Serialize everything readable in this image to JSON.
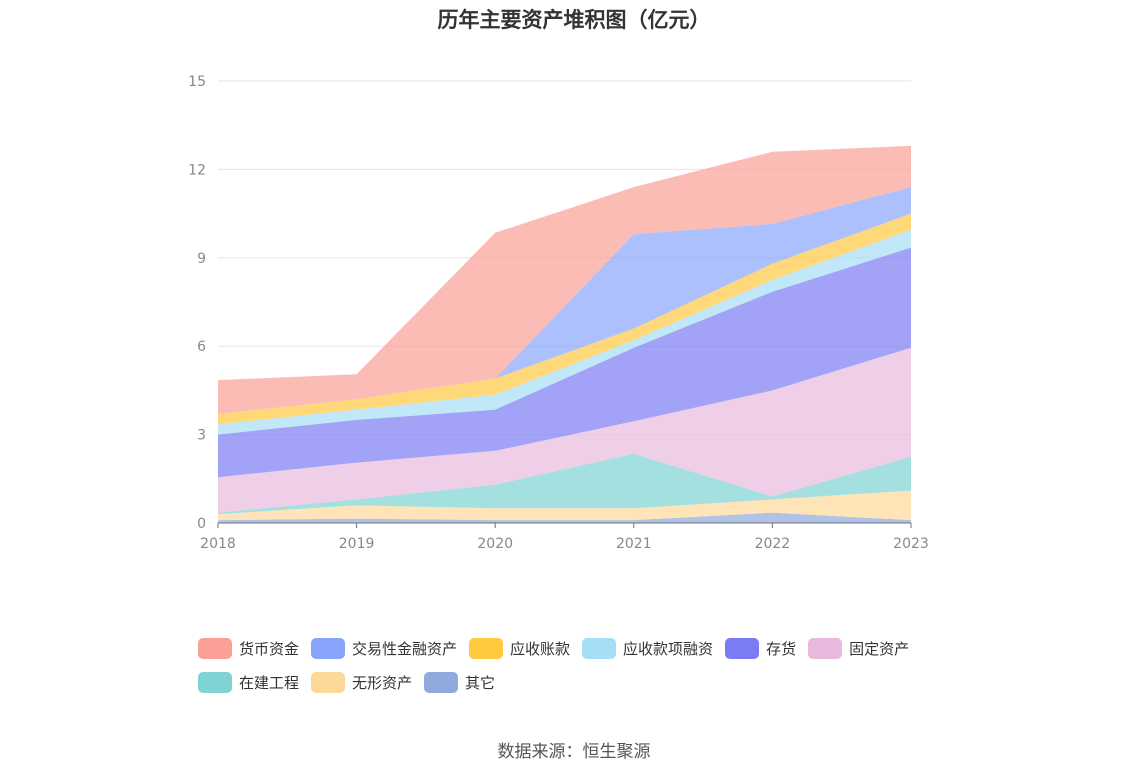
{
  "title": "历年主要资产堆积图（亿元）",
  "source": "数据来源：恒生聚源",
  "chart_data": {
    "type": "area",
    "stacked": true,
    "title": "历年主要资产堆积图（亿元）",
    "unit": "亿元",
    "x": [
      "2018",
      "2019",
      "2020",
      "2021",
      "2022",
      "2023"
    ],
    "ylim": [
      0,
      15
    ],
    "yticks": [
      "0",
      "3",
      "6",
      "9",
      "12",
      "15"
    ],
    "grid": true,
    "legend_position": "bottom",
    "series": [
      {
        "name": "其它",
        "color": "#8faadc",
        "values": [
          0.1,
          0.15,
          0.1,
          0.1,
          0.35,
          0.1
        ]
      },
      {
        "name": "无形资产",
        "color": "#fdd999",
        "values": [
          0.2,
          0.45,
          0.4,
          0.4,
          0.45,
          1.0
        ]
      },
      {
        "name": "在建工程",
        "color": "#7fd3d3",
        "values": [
          0.05,
          0.2,
          0.8,
          1.85,
          0.1,
          1.15
        ]
      },
      {
        "name": "固定资产",
        "color": "#e8b9dd",
        "values": [
          1.2,
          1.25,
          1.15,
          1.1,
          3.6,
          3.7
        ]
      },
      {
        "name": "存货",
        "color": "#7b7cf4",
        "values": [
          1.45,
          1.45,
          1.4,
          2.5,
          3.35,
          3.4
        ]
      },
      {
        "name": "应收款项融资",
        "color": "#a6def7",
        "values": [
          0.35,
          0.35,
          0.5,
          0.25,
          0.4,
          0.6
        ]
      },
      {
        "name": "应收账款",
        "color": "#ffc940",
        "values": [
          0.35,
          0.35,
          0.55,
          0.4,
          0.55,
          0.55
        ]
      },
      {
        "name": "交易性金融资产",
        "color": "#87a5fb",
        "values": [
          0,
          0,
          0,
          3.2,
          1.35,
          0.9
        ]
      },
      {
        "name": "货币资金",
        "color": "#fb9f97",
        "values": [
          1.15,
          0.85,
          4.95,
          1.6,
          2.45,
          1.4
        ]
      }
    ]
  },
  "legend": [
    {
      "label": "货币资金",
      "color": "#fb9f97"
    },
    {
      "label": "交易性金融资产",
      "color": "#87a5fb"
    },
    {
      "label": "应收账款",
      "color": "#ffc940"
    },
    {
      "label": "应收款项融资",
      "color": "#a6def7"
    },
    {
      "label": "存货",
      "color": "#7b7cf4"
    },
    {
      "label": "固定资产",
      "color": "#e8b9dd"
    },
    {
      "label": "在建工程",
      "color": "#7fd3d3"
    },
    {
      "label": "无形资产",
      "color": "#fdd999"
    },
    {
      "label": "其它",
      "color": "#8faadc"
    }
  ]
}
